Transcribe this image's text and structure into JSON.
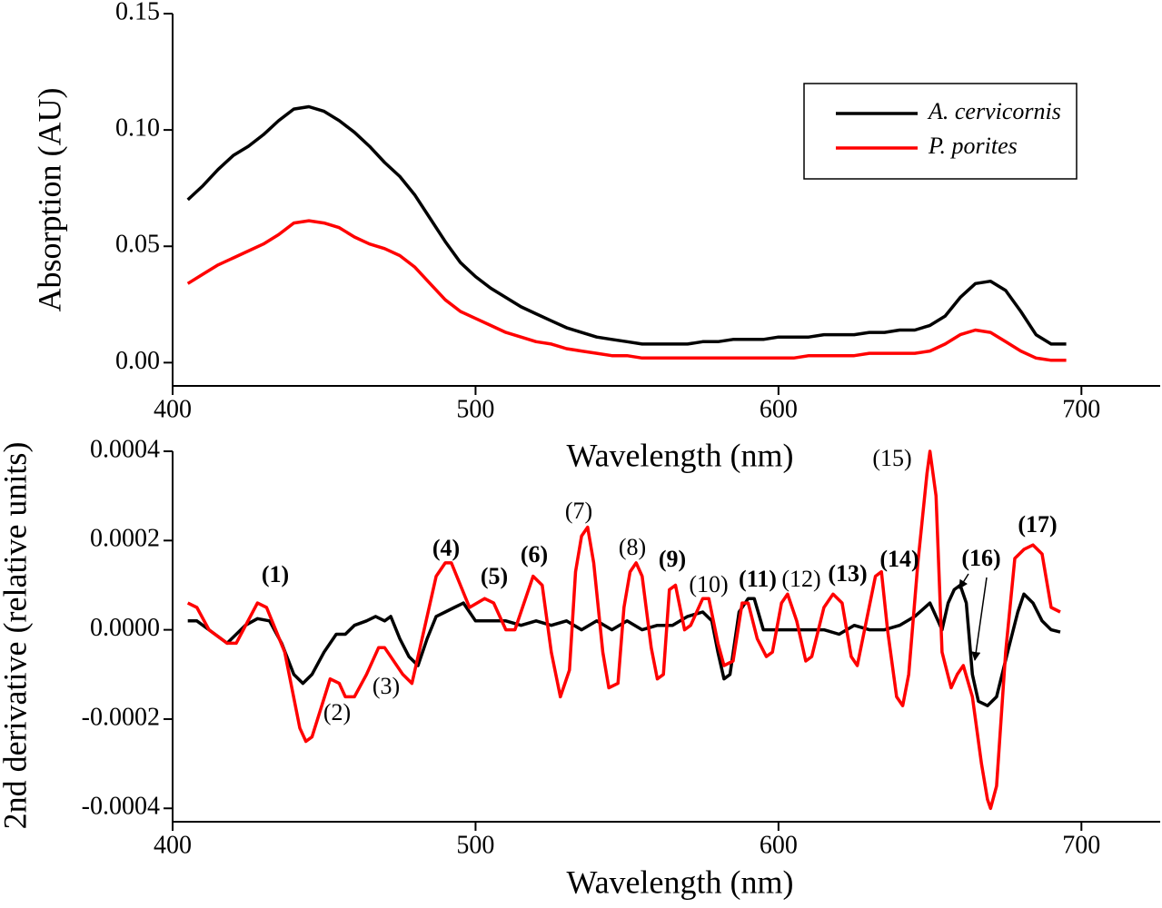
{
  "chart_data": [
    {
      "type": "line",
      "ylabel": "Absorption (AU)",
      "xlabel": "Wavelength (nm)",
      "xlim": [
        400,
        726
      ],
      "xticks": [
        400,
        500,
        600,
        700
      ],
      "ylim": [
        -0.01,
        0.15
      ],
      "yticks": [
        {
          "value": 0,
          "label": "0.00"
        },
        0.05,
        {
          "value": 0.1,
          "label": "0.10"
        },
        0.15
      ],
      "legend": "upper right",
      "x": [
        405,
        410,
        415,
        420,
        425,
        430,
        435,
        440,
        445,
        450,
        455,
        460,
        465,
        470,
        475,
        480,
        485,
        490,
        495,
        500,
        505,
        510,
        515,
        520,
        525,
        530,
        535,
        540,
        545,
        550,
        555,
        560,
        565,
        570,
        575,
        580,
        585,
        590,
        595,
        600,
        605,
        610,
        615,
        620,
        625,
        630,
        635,
        640,
        645,
        650,
        655,
        660,
        665,
        670,
        675,
        680,
        685,
        690,
        695
      ],
      "series": [
        {
          "name": "A. cervicornis",
          "color": "#000000",
          "values": [
            0.07,
            0.076,
            0.083,
            0.089,
            0.093,
            0.098,
            0.104,
            0.109,
            0.11,
            0.108,
            0.104,
            0.099,
            0.093,
            0.086,
            0.08,
            0.072,
            0.062,
            0.052,
            0.043,
            0.037,
            0.032,
            0.028,
            0.024,
            0.021,
            0.018,
            0.015,
            0.013,
            0.011,
            0.01,
            0.009,
            0.008,
            0.008,
            0.008,
            0.008,
            0.009,
            0.009,
            0.01,
            0.01,
            0.01,
            0.011,
            0.011,
            0.011,
            0.012,
            0.012,
            0.012,
            0.013,
            0.013,
            0.014,
            0.014,
            0.016,
            0.02,
            0.028,
            0.034,
            0.035,
            0.031,
            0.022,
            0.012,
            0.008,
            0.008
          ]
        },
        {
          "name": "P. porites",
          "color": "#ff0000",
          "values": [
            0.034,
            0.038,
            0.042,
            0.045,
            0.048,
            0.051,
            0.055,
            0.06,
            0.061,
            0.06,
            0.058,
            0.054,
            0.051,
            0.049,
            0.046,
            0.041,
            0.034,
            0.027,
            0.022,
            0.019,
            0.016,
            0.013,
            0.011,
            0.009,
            0.008,
            0.006,
            0.005,
            0.004,
            0.003,
            0.003,
            0.002,
            0.002,
            0.002,
            0.002,
            0.002,
            0.002,
            0.002,
            0.002,
            0.002,
            0.002,
            0.002,
            0.003,
            0.003,
            0.003,
            0.003,
            0.004,
            0.004,
            0.004,
            0.004,
            0.005,
            0.008,
            0.012,
            0.014,
            0.013,
            0.009,
            0.005,
            0.002,
            0.001,
            0.001
          ]
        }
      ]
    },
    {
      "type": "line",
      "ylabel": "2nd derivative (relative units)",
      "xlabel": "Wavelength (nm)",
      "xlim": [
        400,
        726
      ],
      "xticks": [
        400,
        500,
        600,
        700
      ],
      "ylim": [
        -0.00043,
        0.0004
      ],
      "yticks": [
        {
          "value": -0.0004,
          "label": "-0.0004"
        },
        {
          "value": -0.0002,
          "label": "-0.0002"
        },
        {
          "value": 0,
          "label": "0.0000"
        },
        {
          "value": 0.0002,
          "label": "0.0002"
        },
        {
          "value": 0.0004,
          "label": "0.0004"
        }
      ],
      "series": [
        {
          "name": "A. cervicornis",
          "color": "#000000",
          "x": [
            405,
            408,
            412,
            418,
            424,
            428,
            432,
            436,
            440,
            443,
            446,
            450,
            454,
            457,
            460,
            464,
            467,
            470,
            472,
            475,
            478,
            481,
            484,
            487,
            490,
            493,
            496,
            500,
            505,
            510,
            515,
            520,
            525,
            530,
            535,
            540,
            545,
            550,
            555,
            560,
            565,
            570,
            575,
            578,
            580,
            582,
            584,
            587,
            590,
            592,
            595,
            600,
            605,
            610,
            615,
            620,
            625,
            630,
            635,
            640,
            645,
            650,
            652,
            654,
            656,
            658,
            660,
            662,
            664,
            666,
            669,
            672,
            676,
            679,
            681,
            684,
            687,
            690,
            693
          ],
          "values": [
            2e-05,
            2e-05,
            0,
            -3e-05,
            1e-05,
            2.5e-05,
            2e-05,
            -3e-05,
            -0.0001,
            -0.00012,
            -0.0001,
            -5e-05,
            -1e-05,
            -1e-05,
            1e-05,
            2e-05,
            3e-05,
            2e-05,
            3e-05,
            -2e-05,
            -6e-05,
            -8e-05,
            -2e-05,
            3e-05,
            4e-05,
            5e-05,
            6e-05,
            2e-05,
            2e-05,
            2e-05,
            1e-05,
            2e-05,
            1e-05,
            2e-05,
            0,
            2e-05,
            0,
            2e-05,
            0,
            1e-05,
            1e-05,
            3e-05,
            4e-05,
            2e-05,
            -5e-05,
            -0.00011,
            -0.0001,
            4e-05,
            7e-05,
            7e-05,
            0,
            0,
            0,
            0,
            0,
            -1e-05,
            1e-05,
            0,
            0,
            1e-05,
            3e-05,
            6e-05,
            3e-05,
            0,
            6e-05,
            9e-05,
            0.0001,
            6e-05,
            -0.0001,
            -0.00016,
            -0.00017,
            -0.00015,
            -4e-05,
            4e-05,
            8e-05,
            6e-05,
            2e-05,
            0,
            -5e-06
          ]
        },
        {
          "name": "P. porites",
          "color": "#ff0000",
          "x": [
            405,
            408,
            412,
            418,
            421,
            428,
            431,
            437,
            442,
            444,
            446,
            452,
            455,
            457,
            460,
            464,
            468,
            470,
            476,
            479,
            483,
            487,
            490,
            492,
            495,
            498,
            503,
            506,
            510,
            513,
            516,
            519,
            522,
            525,
            528,
            531,
            533,
            535,
            537,
            539,
            542,
            544,
            547,
            549,
            551,
            553,
            555,
            558,
            560,
            562,
            564,
            566,
            569,
            571,
            575,
            577,
            580,
            582,
            585,
            588,
            590,
            593,
            596,
            598,
            601,
            603,
            606,
            609,
            611,
            615,
            618,
            621,
            624,
            626,
            629,
            632,
            634,
            636,
            639,
            641,
            643,
            646,
            649,
            650,
            652,
            654,
            657,
            659,
            661,
            664,
            667,
            669,
            670,
            672,
            675,
            678,
            681,
            684,
            687,
            690,
            693
          ],
          "values": [
            6e-05,
            5e-05,
            0,
            -3e-05,
            -3e-05,
            6e-05,
            5e-05,
            -5e-05,
            -0.00022,
            -0.00025,
            -0.00024,
            -0.00011,
            -0.00012,
            -0.00015,
            -0.00015,
            -0.0001,
            -4e-05,
            -4e-05,
            -0.0001,
            -0.00012,
            0,
            0.00012,
            0.00015,
            0.00015,
            0.0001,
            5e-05,
            7e-05,
            6e-05,
            0,
            0,
            6e-05,
            0.00012,
            0.0001,
            -5e-05,
            -0.00015,
            -9e-05,
            0.00013,
            0.00021,
            0.00023,
            0.00015,
            -5e-05,
            -0.00013,
            -0.00012,
            5e-05,
            0.00013,
            0.00015,
            0.00012,
            -4e-05,
            -0.00011,
            -0.0001,
            9e-05,
            0.0001,
            0,
            1e-05,
            7e-05,
            7e-05,
            -3e-05,
            -8e-05,
            -7e-05,
            6e-05,
            6e-05,
            -2e-05,
            -6e-05,
            -5e-05,
            6e-05,
            8e-05,
            2e-05,
            -7e-05,
            -6e-05,
            5e-05,
            8e-05,
            6e-05,
            -6e-05,
            -8e-05,
            2e-05,
            0.00012,
            0.00013,
            0,
            -0.00015,
            -0.00017,
            -0.0001,
            0.00015,
            0.00035,
            0.0004,
            0.0003,
            -5e-05,
            -0.00013,
            -0.0001,
            -8e-05,
            -0.00015,
            -0.0003,
            -0.00038,
            -0.0004,
            -0.00035,
            -5e-05,
            0.00016,
            0.00018,
            0.00019,
            0.00017,
            5e-05,
            4e-05
          ]
        }
      ],
      "annotations": [
        {
          "text": "(1)",
          "bold": true
        },
        {
          "text": "(2)",
          "bold": false
        },
        {
          "text": "(3)",
          "bold": false
        },
        {
          "text": "(4)",
          "bold": true
        },
        {
          "text": "(5)",
          "bold": true
        },
        {
          "text": "(6)",
          "bold": true
        },
        {
          "text": "(7)",
          "bold": false
        },
        {
          "text": "(8)",
          "bold": false
        },
        {
          "text": "(9)",
          "bold": true
        },
        {
          "text": "(10)",
          "bold": false
        },
        {
          "text": "(11)",
          "bold": true
        },
        {
          "text": "(12)",
          "bold": false
        },
        {
          "text": "(13)",
          "bold": true
        },
        {
          "text": "(14)",
          "bold": true
        },
        {
          "text": "(15)",
          "bold": false
        },
        {
          "text": "(16)",
          "bold": true
        },
        {
          "text": "(17)",
          "bold": true
        }
      ]
    }
  ]
}
